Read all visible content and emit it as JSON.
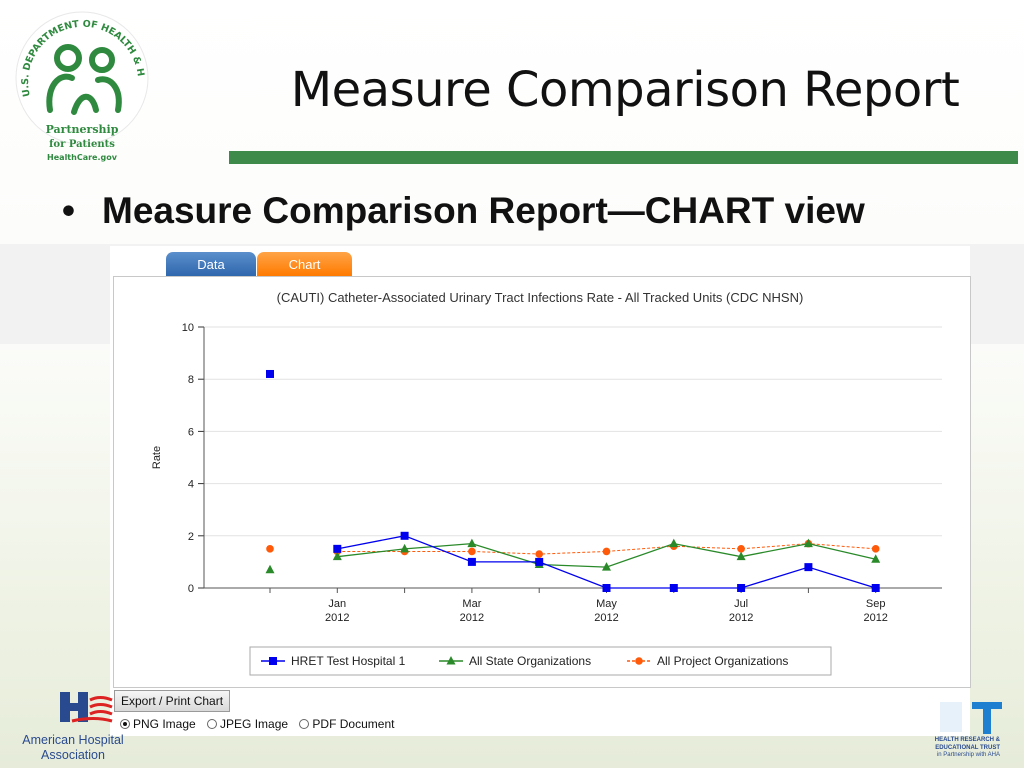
{
  "slide": {
    "title": "Measure Comparison Report",
    "bullet": "Measure Comparison Report—CHART view"
  },
  "logos": {
    "hhs_lines": [
      "Partnership",
      "for Patients",
      "HealthCare.gov"
    ],
    "hhs_ring_text": "U.S. DEPARTMENT OF HEALTH & HUMAN SERVICES",
    "aha_lines": [
      "American Hospital",
      "Association"
    ],
    "hret_lines": [
      "HEALTH RESEARCH &",
      "EDUCATIONAL TRUST",
      "in Partnership with AHA"
    ]
  },
  "tabs": [
    {
      "label": "Data",
      "active": false
    },
    {
      "label": "Chart",
      "active": true
    }
  ],
  "export": {
    "button_label": "Export / Print Chart",
    "options": [
      {
        "label": "PNG Image",
        "selected": true
      },
      {
        "label": "JPEG Image",
        "selected": false
      },
      {
        "label": "PDF Document",
        "selected": false
      }
    ]
  },
  "colors": {
    "hospital": "#0000ee",
    "state": "#2a8a2a",
    "project": "#ff5a0a",
    "title_bar": "#3e8a4a"
  },
  "chart_data": {
    "type": "line",
    "title": "(CAUTI) Catheter-Associated Urinary Tract Infections Rate - All Tracked Units (CDC NHSN)",
    "ylabel": "Rate",
    "xlabel": "",
    "ylim": [
      0,
      10
    ],
    "yticks": [
      0,
      2,
      4,
      6,
      8,
      10
    ],
    "x": [
      "2011-12",
      "2012-01",
      "2012-02",
      "2012-03",
      "2012-04",
      "2012-05",
      "2012-06",
      "2012-07",
      "2012-08",
      "2012-09"
    ],
    "xtick_labels": [
      {
        "month": "Jan",
        "year": "2012"
      },
      {
        "month": "Mar",
        "year": "2012"
      },
      {
        "month": "May",
        "year": "2012"
      },
      {
        "month": "Jul",
        "year": "2012"
      },
      {
        "month": "Sep",
        "year": "2012"
      }
    ],
    "grid": true,
    "legend_position": "bottom",
    "series": [
      {
        "name": "HRET Test Hospital 1",
        "marker": "square",
        "dashed": false,
        "values": [
          8.2,
          1.5,
          2.0,
          1.0,
          1.0,
          0.0,
          0.0,
          0.0,
          0.8,
          0.0
        ]
      },
      {
        "name": "All State Organizations",
        "marker": "triangle",
        "dashed": false,
        "values": [
          0.7,
          1.2,
          1.5,
          1.7,
          0.9,
          0.8,
          1.7,
          1.2,
          1.7,
          1.1
        ]
      },
      {
        "name": "All Project Organizations",
        "marker": "circle",
        "dashed": true,
        "values": [
          1.5,
          1.4,
          1.4,
          1.4,
          1.3,
          1.4,
          1.6,
          1.5,
          1.7,
          1.5
        ]
      }
    ]
  }
}
